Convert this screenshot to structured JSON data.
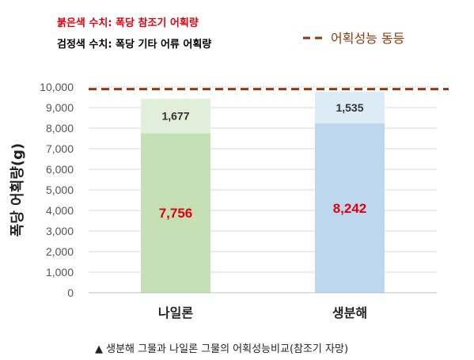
{
  "legend": {
    "red_text": "붉은색 수치: 폭당 참조기 어획량",
    "black_text": "검정색 수치: 폭당 기타 어류 어획량",
    "red_color": "#e3000f",
    "black_color": "#000000"
  },
  "reference_line": {
    "label": "어획성능 동등",
    "value": 9900,
    "color": "#8b3a0e"
  },
  "caption": "▲ 생분해 그물과 나일론 그물의 어획성능비교(참조기 자망)",
  "chart_data": {
    "type": "bar",
    "stacked": true,
    "categories": [
      "나일론",
      "생분해"
    ],
    "series": [
      {
        "values": [
          7756,
          8242
        ],
        "labels": [
          "7,756",
          "8,242"
        ],
        "colors": [
          "#c5e0b4",
          "#bdd7ee"
        ],
        "label_color": "#e3000f"
      },
      {
        "values": [
          1677,
          1535
        ],
        "labels": [
          "1,677",
          "1,535"
        ],
        "colors": [
          "#e2efda",
          "#ddebf7"
        ],
        "label_color": "#333333"
      }
    ],
    "ylabel": "폭당 어획량(g)",
    "ylim": [
      0,
      10000
    ],
    "yticks": [
      0,
      1000,
      2000,
      3000,
      4000,
      5000,
      6000,
      7000,
      8000,
      9000,
      10000
    ],
    "ytick_labels": [
      "0",
      "1,000",
      "2,000",
      "3,000",
      "4,000",
      "5,000",
      "6,000",
      "7,000",
      "8,000",
      "9,000",
      "10,000"
    ],
    "grid": true,
    "gridline_color": "#d9d9d9"
  }
}
